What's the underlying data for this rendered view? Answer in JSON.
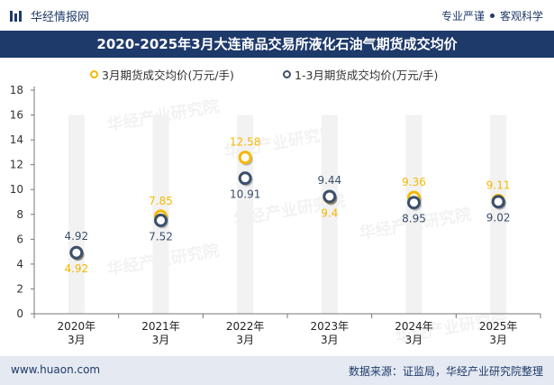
{
  "header": {
    "brand": "华经情报网",
    "tag1": "专业严谨",
    "tag2": "客观科学",
    "title": "2020-2025年3月大连商品交易所液化石油气期货成交均价"
  },
  "footer": {
    "url": "www.huaon.com",
    "source": "数据来源：证监局，华经产业研究院整理"
  },
  "watermark": "华经产业研究院",
  "colors": {
    "navy": "#1e3a6b",
    "gold": "#f5b800",
    "slate": "#3a4f6b",
    "footer_bg": "#e4e9f2"
  },
  "chart_data": {
    "type": "line",
    "title": "2020-2025年3月大连商品交易所液化石油气期货成交均价",
    "categories": [
      "2020年\n3月",
      "2021年\n3月",
      "2022年\n3月",
      "2023年\n3月",
      "2024年\n3月",
      "2025年\n3月"
    ],
    "series": [
      {
        "name": "3月期货成交均价(万元/手)",
        "color": "#f5b800",
        "values": [
          4.92,
          7.85,
          12.58,
          9.4,
          9.36,
          9.11
        ],
        "labels": [
          "4.92",
          "7.85",
          "12.58",
          "9.4",
          "9.36",
          "9.11"
        ]
      },
      {
        "name": "1-3月期货成交均价(万元/手)",
        "color": "#3a4f6b",
        "values": [
          4.92,
          7.52,
          10.91,
          9.44,
          8.95,
          9.02
        ],
        "labels": [
          "4.92",
          "7.52",
          "10.91",
          "9.44",
          "8.95",
          "9.02"
        ]
      }
    ],
    "ylim": [
      0,
      18
    ],
    "yticks": [
      "0",
      "2",
      "4",
      "6",
      "8",
      "10",
      "12",
      "14",
      "16",
      "18"
    ],
    "legend_position": "top-center"
  }
}
